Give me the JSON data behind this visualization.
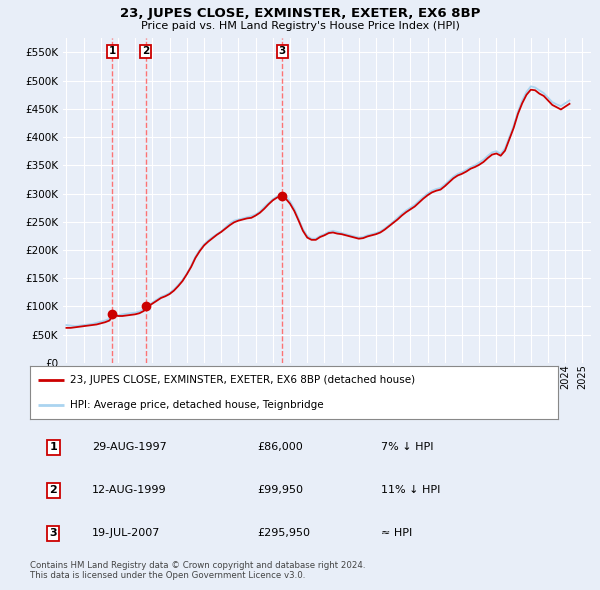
{
  "title": "23, JUPES CLOSE, EXMINSTER, EXETER, EX6 8BP",
  "subtitle": "Price paid vs. HM Land Registry's House Price Index (HPI)",
  "ylim": [
    0,
    575000
  ],
  "yticks": [
    0,
    50000,
    100000,
    150000,
    200000,
    250000,
    300000,
    350000,
    400000,
    450000,
    500000,
    550000
  ],
  "ytick_labels": [
    "£0",
    "£50K",
    "£100K",
    "£150K",
    "£200K",
    "£250K",
    "£300K",
    "£350K",
    "£400K",
    "£450K",
    "£500K",
    "£550K"
  ],
  "xlim_start": 1994.8,
  "xlim_end": 2025.5,
  "background_color": "#e8eef8",
  "plot_bg_color": "#e8eef8",
  "grid_color": "#ffffff",
  "hpi_line_color": "#aad4f0",
  "price_line_color": "#cc0000",
  "dot_color": "#cc0000",
  "dashed_line_color": "#ff6666",
  "sales": [
    {
      "date_num": 1997.66,
      "price": 86000,
      "label": "1"
    },
    {
      "date_num": 1999.62,
      "price": 99950,
      "label": "2"
    },
    {
      "date_num": 2007.54,
      "price": 295950,
      "label": "3"
    }
  ],
  "legend_label_price": "23, JUPES CLOSE, EXMINSTER, EXETER, EX6 8BP (detached house)",
  "legend_label_hpi": "HPI: Average price, detached house, Teignbridge",
  "table_rows": [
    {
      "num": "1",
      "date": "29-AUG-1997",
      "price": "£86,000",
      "hpi": "7% ↓ HPI"
    },
    {
      "num": "2",
      "date": "12-AUG-1999",
      "price": "£99,950",
      "hpi": "11% ↓ HPI"
    },
    {
      "num": "3",
      "date": "19-JUL-2007",
      "price": "£295,950",
      "hpi": "≈ HPI"
    }
  ],
  "footnote1": "Contains HM Land Registry data © Crown copyright and database right 2024.",
  "footnote2": "This data is licensed under the Open Government Licence v3.0.",
  "hpi_data_x": [
    1995.0,
    1995.25,
    1995.5,
    1995.75,
    1996.0,
    1996.25,
    1996.5,
    1996.75,
    1997.0,
    1997.25,
    1997.5,
    1997.75,
    1998.0,
    1998.25,
    1998.5,
    1998.75,
    1999.0,
    1999.25,
    1999.5,
    1999.75,
    2000.0,
    2000.25,
    2000.5,
    2000.75,
    2001.0,
    2001.25,
    2001.5,
    2001.75,
    2002.0,
    2002.25,
    2002.5,
    2002.75,
    2003.0,
    2003.25,
    2003.5,
    2003.75,
    2004.0,
    2004.25,
    2004.5,
    2004.75,
    2005.0,
    2005.25,
    2005.5,
    2005.75,
    2006.0,
    2006.25,
    2006.5,
    2006.75,
    2007.0,
    2007.25,
    2007.5,
    2007.75,
    2008.0,
    2008.25,
    2008.5,
    2008.75,
    2009.0,
    2009.25,
    2009.5,
    2009.75,
    2010.0,
    2010.25,
    2010.5,
    2010.75,
    2011.0,
    2011.25,
    2011.5,
    2011.75,
    2012.0,
    2012.25,
    2012.5,
    2012.75,
    2013.0,
    2013.25,
    2013.5,
    2013.75,
    2014.0,
    2014.25,
    2014.5,
    2014.75,
    2015.0,
    2015.25,
    2015.5,
    2015.75,
    2016.0,
    2016.25,
    2016.5,
    2016.75,
    2017.0,
    2017.25,
    2017.5,
    2017.75,
    2018.0,
    2018.25,
    2018.5,
    2018.75,
    2019.0,
    2019.25,
    2019.5,
    2019.75,
    2020.0,
    2020.25,
    2020.5,
    2020.75,
    2021.0,
    2021.25,
    2021.5,
    2021.75,
    2022.0,
    2022.25,
    2022.5,
    2022.75,
    2023.0,
    2023.25,
    2023.5,
    2023.75,
    2024.0,
    2024.25
  ],
  "hpi_data_y": [
    67000,
    66000,
    65000,
    66000,
    67000,
    68000,
    69000,
    71000,
    73000,
    75000,
    78000,
    82000,
    84000,
    86000,
    87000,
    88000,
    89000,
    91000,
    95000,
    101000,
    107000,
    112000,
    117000,
    120000,
    124000,
    130000,
    138000,
    147000,
    158000,
    172000,
    188000,
    200000,
    210000,
    217000,
    223000,
    228000,
    233000,
    240000,
    247000,
    252000,
    254000,
    256000,
    258000,
    260000,
    263000,
    268000,
    276000,
    283000,
    290000,
    295000,
    300000,
    295000,
    286000,
    273000,
    255000,
    237000,
    225000,
    220000,
    220000,
    225000,
    228000,
    232000,
    234000,
    232000,
    230000,
    228000,
    226000,
    224000,
    222000,
    223000,
    226000,
    228000,
    230000,
    233000,
    238000,
    244000,
    250000,
    257000,
    264000,
    270000,
    275000,
    280000,
    287000,
    294000,
    300000,
    305000,
    308000,
    310000,
    316000,
    323000,
    330000,
    335000,
    338000,
    342000,
    347000,
    350000,
    355000,
    360000,
    367000,
    373000,
    375000,
    370000,
    380000,
    400000,
    420000,
    445000,
    465000,
    480000,
    490000,
    488000,
    483000,
    478000,
    470000,
    462000,
    458000,
    455000,
    460000,
    465000
  ],
  "price_data_x": [
    1995.0,
    1995.25,
    1995.5,
    1995.75,
    1996.0,
    1996.25,
    1996.5,
    1996.75,
    1997.0,
    1997.25,
    1997.5,
    1997.75,
    1998.0,
    1998.25,
    1998.5,
    1998.75,
    1999.0,
    1999.25,
    1999.5,
    1999.75,
    2000.0,
    2000.25,
    2000.5,
    2000.75,
    2001.0,
    2001.25,
    2001.5,
    2001.75,
    2002.0,
    2002.25,
    2002.5,
    2002.75,
    2003.0,
    2003.25,
    2003.5,
    2003.75,
    2004.0,
    2004.25,
    2004.5,
    2004.75,
    2005.0,
    2005.25,
    2005.5,
    2005.75,
    2006.0,
    2006.25,
    2006.5,
    2006.75,
    2007.0,
    2007.25,
    2007.5,
    2007.75,
    2008.0,
    2008.25,
    2008.5,
    2008.75,
    2009.0,
    2009.25,
    2009.5,
    2009.75,
    2010.0,
    2010.25,
    2010.5,
    2010.75,
    2011.0,
    2011.25,
    2011.5,
    2011.75,
    2012.0,
    2012.25,
    2012.5,
    2012.75,
    2013.0,
    2013.25,
    2013.5,
    2013.75,
    2014.0,
    2014.25,
    2014.5,
    2014.75,
    2015.0,
    2015.25,
    2015.5,
    2015.75,
    2016.0,
    2016.25,
    2016.5,
    2016.75,
    2017.0,
    2017.25,
    2017.5,
    2017.75,
    2018.0,
    2018.25,
    2018.5,
    2018.75,
    2019.0,
    2019.25,
    2019.5,
    2019.75,
    2020.0,
    2020.25,
    2020.5,
    2020.75,
    2021.0,
    2021.25,
    2021.5,
    2021.75,
    2022.0,
    2022.25,
    2022.5,
    2022.75,
    2023.0,
    2023.25,
    2023.5,
    2023.75,
    2024.0,
    2024.25
  ],
  "price_data_y": [
    62000,
    62000,
    63000,
    64000,
    65000,
    66000,
    67000,
    68000,
    70000,
    72000,
    75000,
    86000,
    83000,
    83000,
    84000,
    85000,
    86000,
    88000,
    92000,
    99950,
    105000,
    110000,
    115000,
    118000,
    122000,
    128000,
    136000,
    145000,
    157000,
    170000,
    186000,
    198000,
    208000,
    215000,
    221000,
    227000,
    232000,
    238000,
    244000,
    249000,
    252000,
    254000,
    256000,
    257000,
    261000,
    266000,
    273000,
    281000,
    288000,
    293000,
    295950,
    291000,
    282000,
    269000,
    252000,
    234000,
    222000,
    218000,
    218000,
    223000,
    226000,
    230000,
    231000,
    229000,
    228000,
    226000,
    224000,
    222000,
    220000,
    221000,
    224000,
    226000,
    228000,
    231000,
    236000,
    242000,
    248000,
    254000,
    261000,
    267000,
    272000,
    277000,
    284000,
    291000,
    297000,
    302000,
    305000,
    307000,
    313000,
    320000,
    327000,
    332000,
    335000,
    339000,
    344000,
    347000,
    351000,
    356000,
    363000,
    369000,
    371000,
    367000,
    376000,
    396000,
    416000,
    441000,
    460000,
    475000,
    484000,
    483000,
    477000,
    473000,
    465000,
    457000,
    453000,
    449000,
    454000,
    459000
  ]
}
